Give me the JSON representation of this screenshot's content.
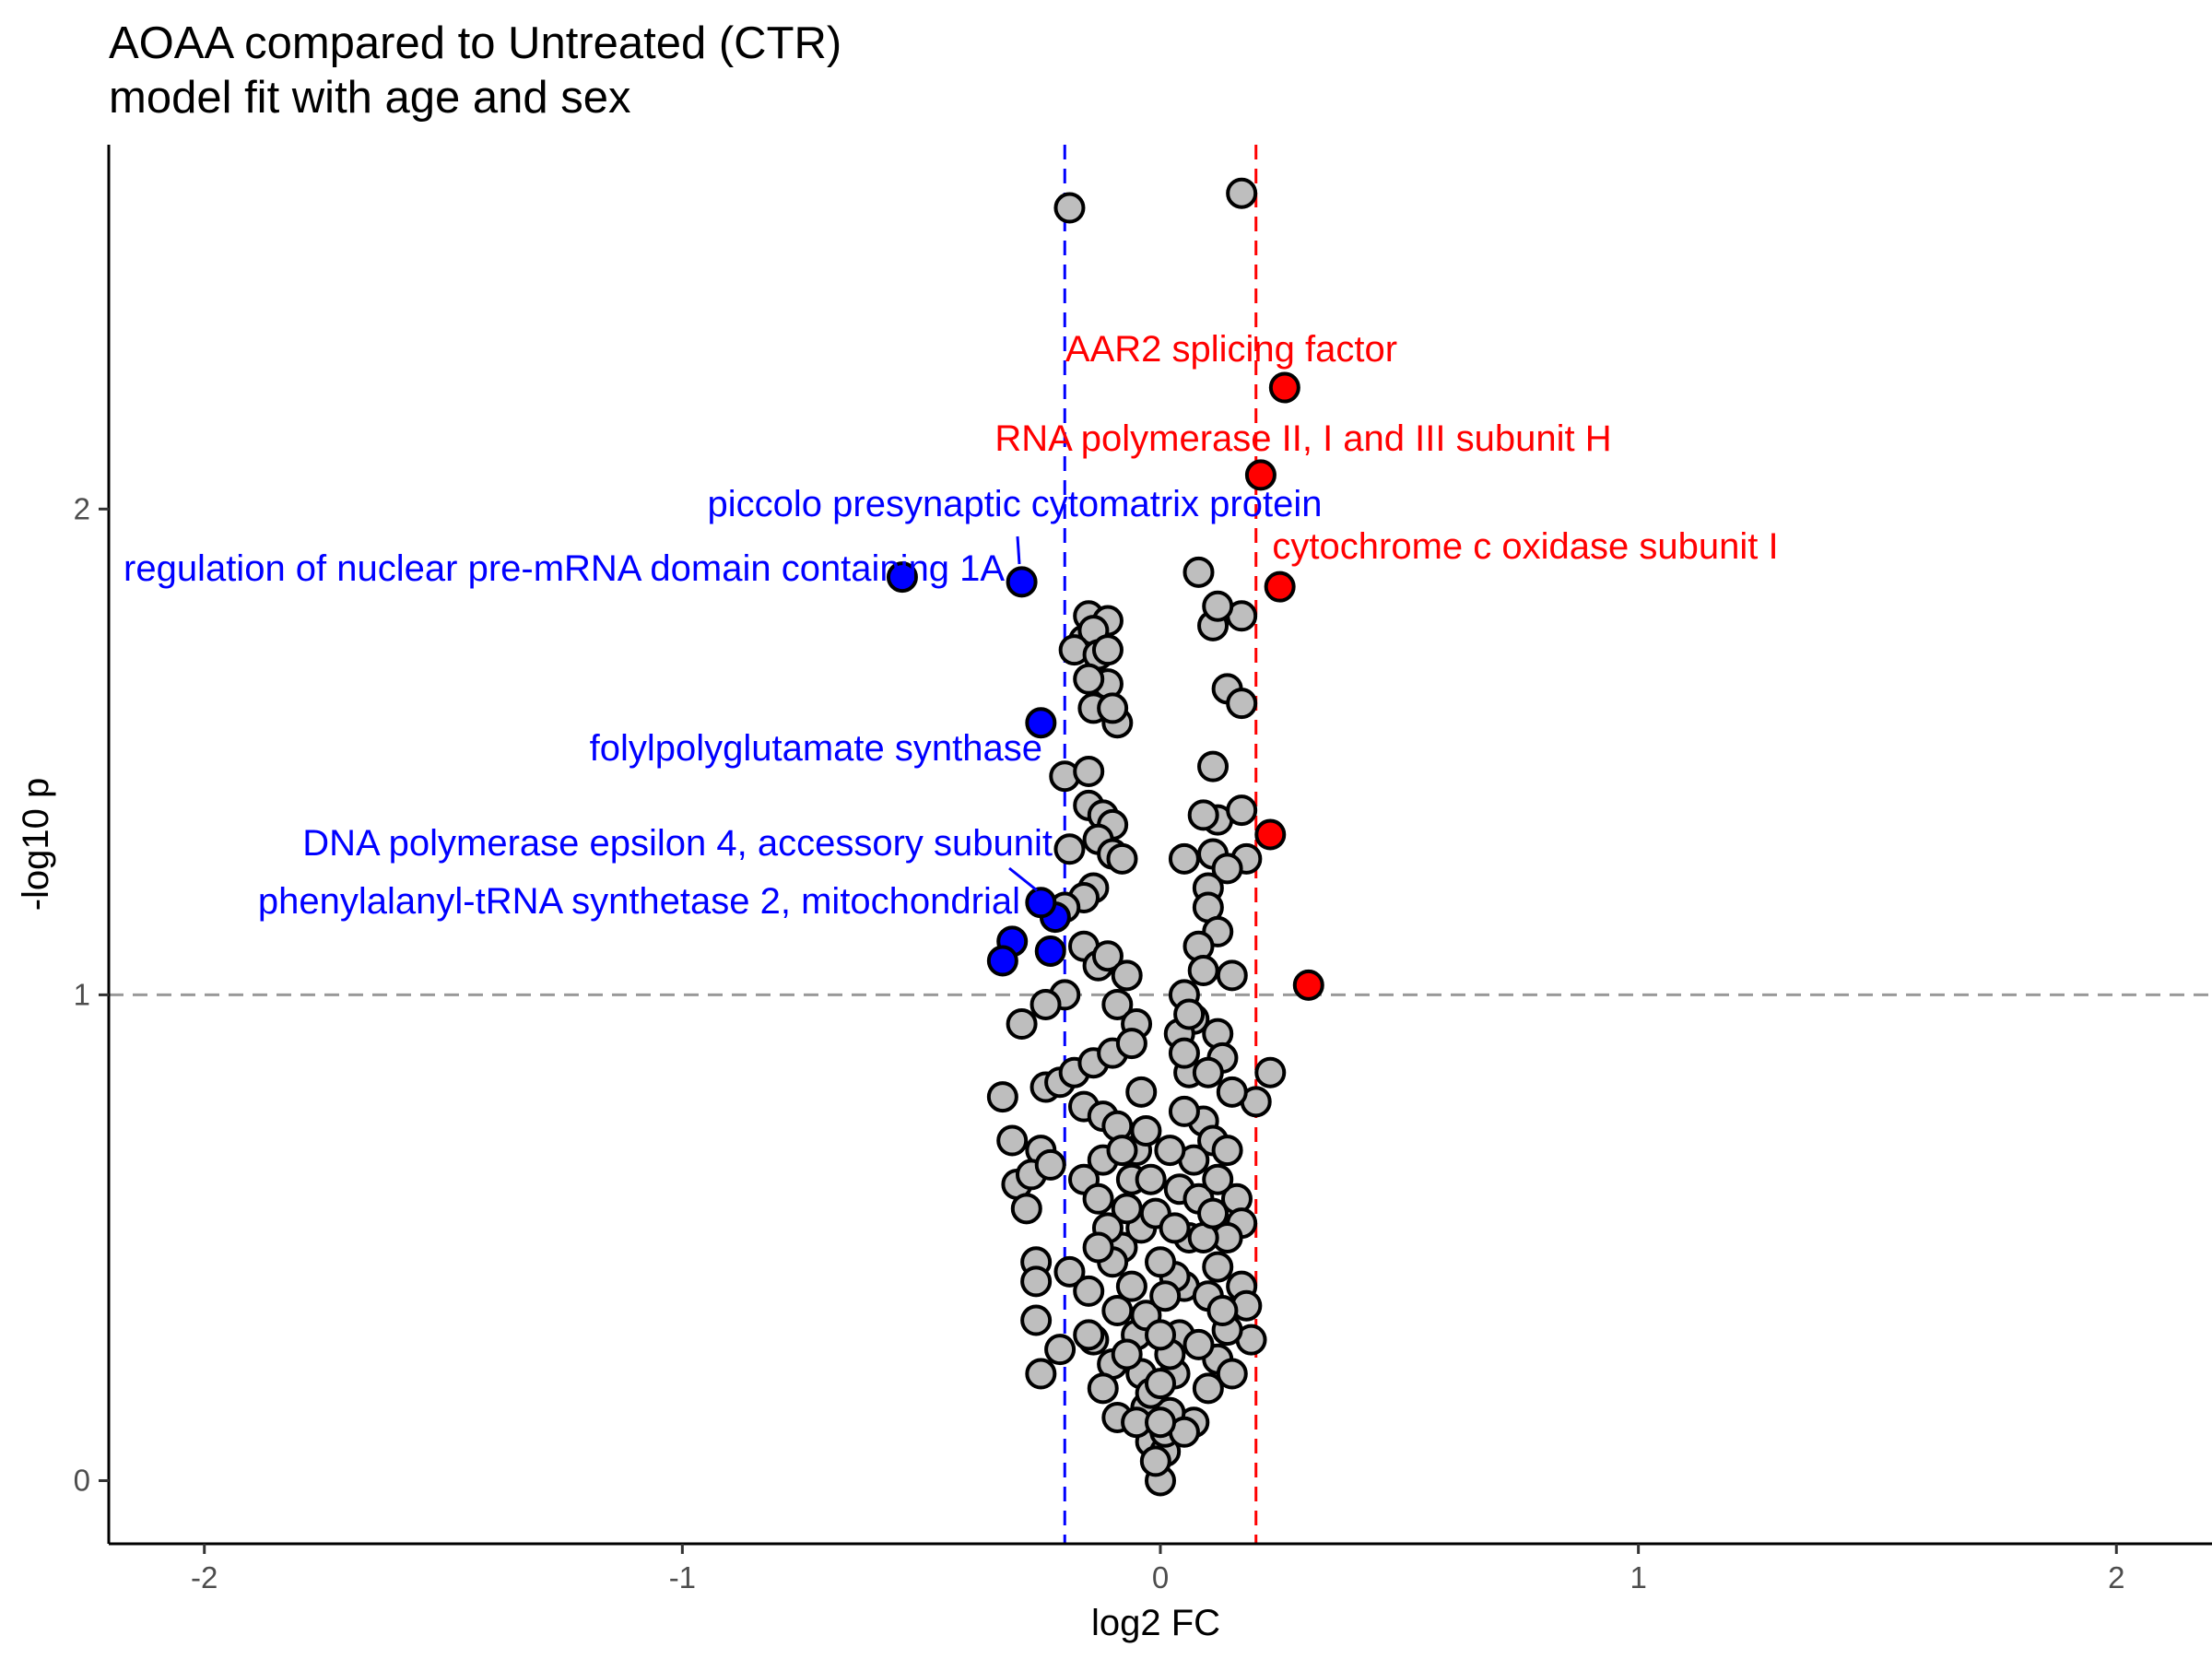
{
  "chart_data": {
    "type": "scatter",
    "title": "AOAA compared to Untreated (CTR)",
    "subtitle": "model fit with age and sex",
    "xlabel": "log2 FC",
    "ylabel": "-log10 p",
    "xlim": [
      -2.2,
      2.2
    ],
    "ylim": [
      -0.13,
      2.75
    ],
    "xticks": [
      -2,
      -1,
      0,
      1,
      2
    ],
    "xtick_labels": [
      "-2",
      "-1",
      "0",
      "1",
      "2"
    ],
    "yticks": [
      0,
      1,
      2
    ],
    "ytick_labels": [
      "0",
      "1",
      "2"
    ],
    "grid": false,
    "thresholds": {
      "p_line": 1,
      "fc_low": -0.2,
      "fc_high": 0.2,
      "fc_low_color": "#0000ff",
      "fc_high_color": "#ff0000",
      "p_line_color": "#999999"
    },
    "colors": {
      "not_significant": "#bebebe",
      "down": "#0000ff",
      "up": "#ff0000",
      "outline": "#000000"
    },
    "labeled_points": [
      {
        "label": "AAR2 splicing factor",
        "x": 0.26,
        "y": 2.25,
        "group": "up"
      },
      {
        "label": "RNA polymerase II, I and III subunit H",
        "x": 0.21,
        "y": 2.07,
        "group": "up"
      },
      {
        "label": "cytochrome c oxidase subunit I",
        "x": 0.25,
        "y": 1.84,
        "group": "up"
      },
      {
        "label": "piccolo presynaptic cytomatrix protein",
        "x": -0.29,
        "y": 1.85,
        "group": "down"
      },
      {
        "label": "regulation of nuclear pre-mRNA domain containing 1A",
        "x": -0.54,
        "y": 1.86,
        "group": "down"
      },
      {
        "label": "folylpolyglutamate synthase",
        "x": -0.25,
        "y": 1.56,
        "group": "down"
      },
      {
        "label": "DNA polymerase epsilon 4, accessory subunit",
        "x": -0.22,
        "y": 1.16,
        "group": "down"
      },
      {
        "label": "phenylalanyl-tRNA synthetase 2, mitochondrial",
        "x": -0.25,
        "y": 1.19,
        "group": "down"
      }
    ],
    "unlabeled_significant": [
      {
        "x": 0.23,
        "y": 1.33,
        "group": "up"
      },
      {
        "x": 0.31,
        "y": 1.02,
        "group": "up"
      },
      {
        "x": -0.31,
        "y": 1.11,
        "group": "down"
      },
      {
        "x": -0.33,
        "y": 1.07,
        "group": "down"
      },
      {
        "x": -0.23,
        "y": 1.09,
        "group": "down"
      }
    ],
    "background_points": [
      [
        -0.19,
        2.62
      ],
      [
        0.17,
        2.65
      ],
      [
        0.08,
        1.87
      ],
      [
        -0.15,
        1.78
      ],
      [
        -0.11,
        1.77
      ],
      [
        -0.16,
        1.73
      ],
      [
        -0.14,
        1.75
      ],
      [
        0.11,
        1.76
      ],
      [
        0.17,
        1.78
      ],
      [
        0.12,
        1.8
      ],
      [
        -0.18,
        1.71
      ],
      [
        -0.13,
        1.7
      ],
      [
        -0.11,
        1.71
      ],
      [
        -0.11,
        1.64
      ],
      [
        -0.15,
        1.65
      ],
      [
        0.14,
        1.63
      ],
      [
        0.17,
        1.6
      ],
      [
        -0.14,
        1.59
      ],
      [
        -0.09,
        1.56
      ],
      [
        -0.1,
        1.59
      ],
      [
        -0.2,
        1.45
      ],
      [
        -0.15,
        1.46
      ],
      [
        0.11,
        1.47
      ],
      [
        0.12,
        1.36
      ],
      [
        0.17,
        1.38
      ],
      [
        0.09,
        1.37
      ],
      [
        -0.15,
        1.39
      ],
      [
        -0.12,
        1.37
      ],
      [
        -0.1,
        1.35
      ],
      [
        -0.13,
        1.32
      ],
      [
        -0.1,
        1.29
      ],
      [
        -0.08,
        1.28
      ],
      [
        -0.19,
        1.3
      ],
      [
        0.05,
        1.28
      ],
      [
        0.18,
        1.28
      ],
      [
        0.11,
        1.29
      ],
      [
        0.14,
        1.26
      ],
      [
        0.1,
        1.22
      ],
      [
        -0.14,
        1.22
      ],
      [
        -0.16,
        1.2
      ],
      [
        -0.2,
        1.18
      ],
      [
        0.1,
        1.18
      ],
      [
        0.12,
        1.13
      ],
      [
        0.08,
        1.1
      ],
      [
        -0.16,
        1.1
      ],
      [
        -0.13,
        1.06
      ],
      [
        -0.11,
        1.08
      ],
      [
        -0.07,
        1.04
      ],
      [
        0.09,
        1.05
      ],
      [
        0.15,
        1.04
      ],
      [
        -0.2,
        1.0
      ],
      [
        -0.24,
        0.98
      ],
      [
        -0.29,
        0.94
      ],
      [
        -0.09,
        0.98
      ],
      [
        -0.05,
        0.94
      ],
      [
        0.05,
        1.0
      ],
      [
        0.07,
        0.95
      ],
      [
        0.04,
        0.92
      ],
      [
        0.12,
        0.92
      ],
      [
        0.13,
        0.87
      ],
      [
        0.23,
        0.84
      ],
      [
        0.2,
        0.78
      ],
      [
        0.15,
        0.8
      ],
      [
        -0.33,
        0.79
      ],
      [
        -0.24,
        0.81
      ],
      [
        -0.21,
        0.82
      ],
      [
        -0.18,
        0.84
      ],
      [
        -0.14,
        0.86
      ],
      [
        -0.1,
        0.88
      ],
      [
        -0.16,
        0.77
      ],
      [
        -0.12,
        0.75
      ],
      [
        -0.09,
        0.73
      ],
      [
        0.09,
        0.74
      ],
      [
        0.11,
        0.7
      ],
      [
        0.14,
        0.68
      ],
      [
        -0.31,
        0.7
      ],
      [
        -0.25,
        0.68
      ],
      [
        -0.3,
        0.61
      ],
      [
        -0.27,
        0.63
      ],
      [
        -0.23,
        0.65
      ],
      [
        -0.28,
        0.56
      ],
      [
        -0.16,
        0.62
      ],
      [
        -0.13,
        0.58
      ],
      [
        0.16,
        0.58
      ],
      [
        0.17,
        0.53
      ],
      [
        0.14,
        0.5
      ],
      [
        0.17,
        0.4
      ],
      [
        -0.26,
        0.45
      ],
      [
        -0.26,
        0.41
      ],
      [
        -0.19,
        0.43
      ],
      [
        -0.15,
        0.39
      ],
      [
        -0.26,
        0.33
      ],
      [
        -0.21,
        0.27
      ],
      [
        -0.25,
        0.22
      ],
      [
        -0.14,
        0.29
      ],
      [
        -0.1,
        0.24
      ],
      [
        -0.12,
        0.19
      ],
      [
        -0.09,
        0.13
      ],
      [
        0.18,
        0.36
      ],
      [
        0.19,
        0.29
      ],
      [
        0.12,
        0.25
      ],
      [
        0.1,
        0.19
      ],
      [
        0.07,
        0.12
      ],
      [
        0.14,
        0.31
      ],
      [
        0.12,
        0.44
      ],
      [
        -0.08,
        0.48
      ],
      [
        -0.06,
        0.4
      ],
      [
        -0.05,
        0.3
      ],
      [
        -0.04,
        0.22
      ],
      [
        -0.03,
        0.15
      ],
      [
        -0.02,
        0.08
      ],
      [
        0.06,
        0.5
      ],
      [
        0.05,
        0.4
      ],
      [
        0.04,
        0.3
      ],
      [
        0.03,
        0.22
      ],
      [
        0.02,
        0.14
      ],
      [
        0.01,
        0.06
      ],
      [
        0.0,
        0.0
      ],
      [
        -0.01,
        0.04
      ],
      [
        0.01,
        0.1
      ],
      [
        -0.02,
        0.18
      ],
      [
        0.02,
        0.26
      ],
      [
        -0.03,
        0.34
      ],
      [
        0.03,
        0.42
      ],
      [
        -0.04,
        0.52
      ],
      [
        0.04,
        0.6
      ],
      [
        -0.05,
        0.68
      ],
      [
        0.05,
        0.76
      ],
      [
        0.06,
        0.84
      ],
      [
        -0.06,
        0.62
      ],
      [
        0.07,
        0.66
      ],
      [
        0.08,
        0.58
      ],
      [
        -0.07,
        0.56
      ],
      [
        0.09,
        0.5
      ],
      [
        -0.09,
        0.35
      ],
      [
        0.1,
        0.38
      ],
      [
        -0.1,
        0.45
      ],
      [
        0.11,
        0.55
      ],
      [
        -0.11,
        0.52
      ],
      [
        -0.07,
        0.26
      ],
      [
        0.08,
        0.28
      ],
      [
        -0.12,
        0.66
      ],
      [
        0.12,
        0.62
      ],
      [
        -0.13,
        0.48
      ],
      [
        0.13,
        0.35
      ],
      [
        -0.15,
        0.3
      ],
      [
        0.15,
        0.22
      ],
      [
        -0.04,
        0.8
      ],
      [
        0.05,
        0.88
      ],
      [
        -0.06,
        0.9
      ],
      [
        0.06,
        0.96
      ],
      [
        -0.08,
        0.68
      ],
      [
        0.1,
        0.84
      ],
      [
        -0.03,
        0.72
      ],
      [
        0.02,
        0.68
      ],
      [
        0.0,
        0.2
      ],
      [
        0.0,
        0.3
      ],
      [
        0.0,
        0.45
      ],
      [
        -0.01,
        0.55
      ],
      [
        0.01,
        0.38
      ],
      [
        -0.02,
        0.62
      ],
      [
        0.03,
        0.52
      ],
      [
        -0.05,
        0.12
      ],
      [
        0.05,
        0.1
      ],
      [
        0.0,
        0.12
      ]
    ]
  }
}
